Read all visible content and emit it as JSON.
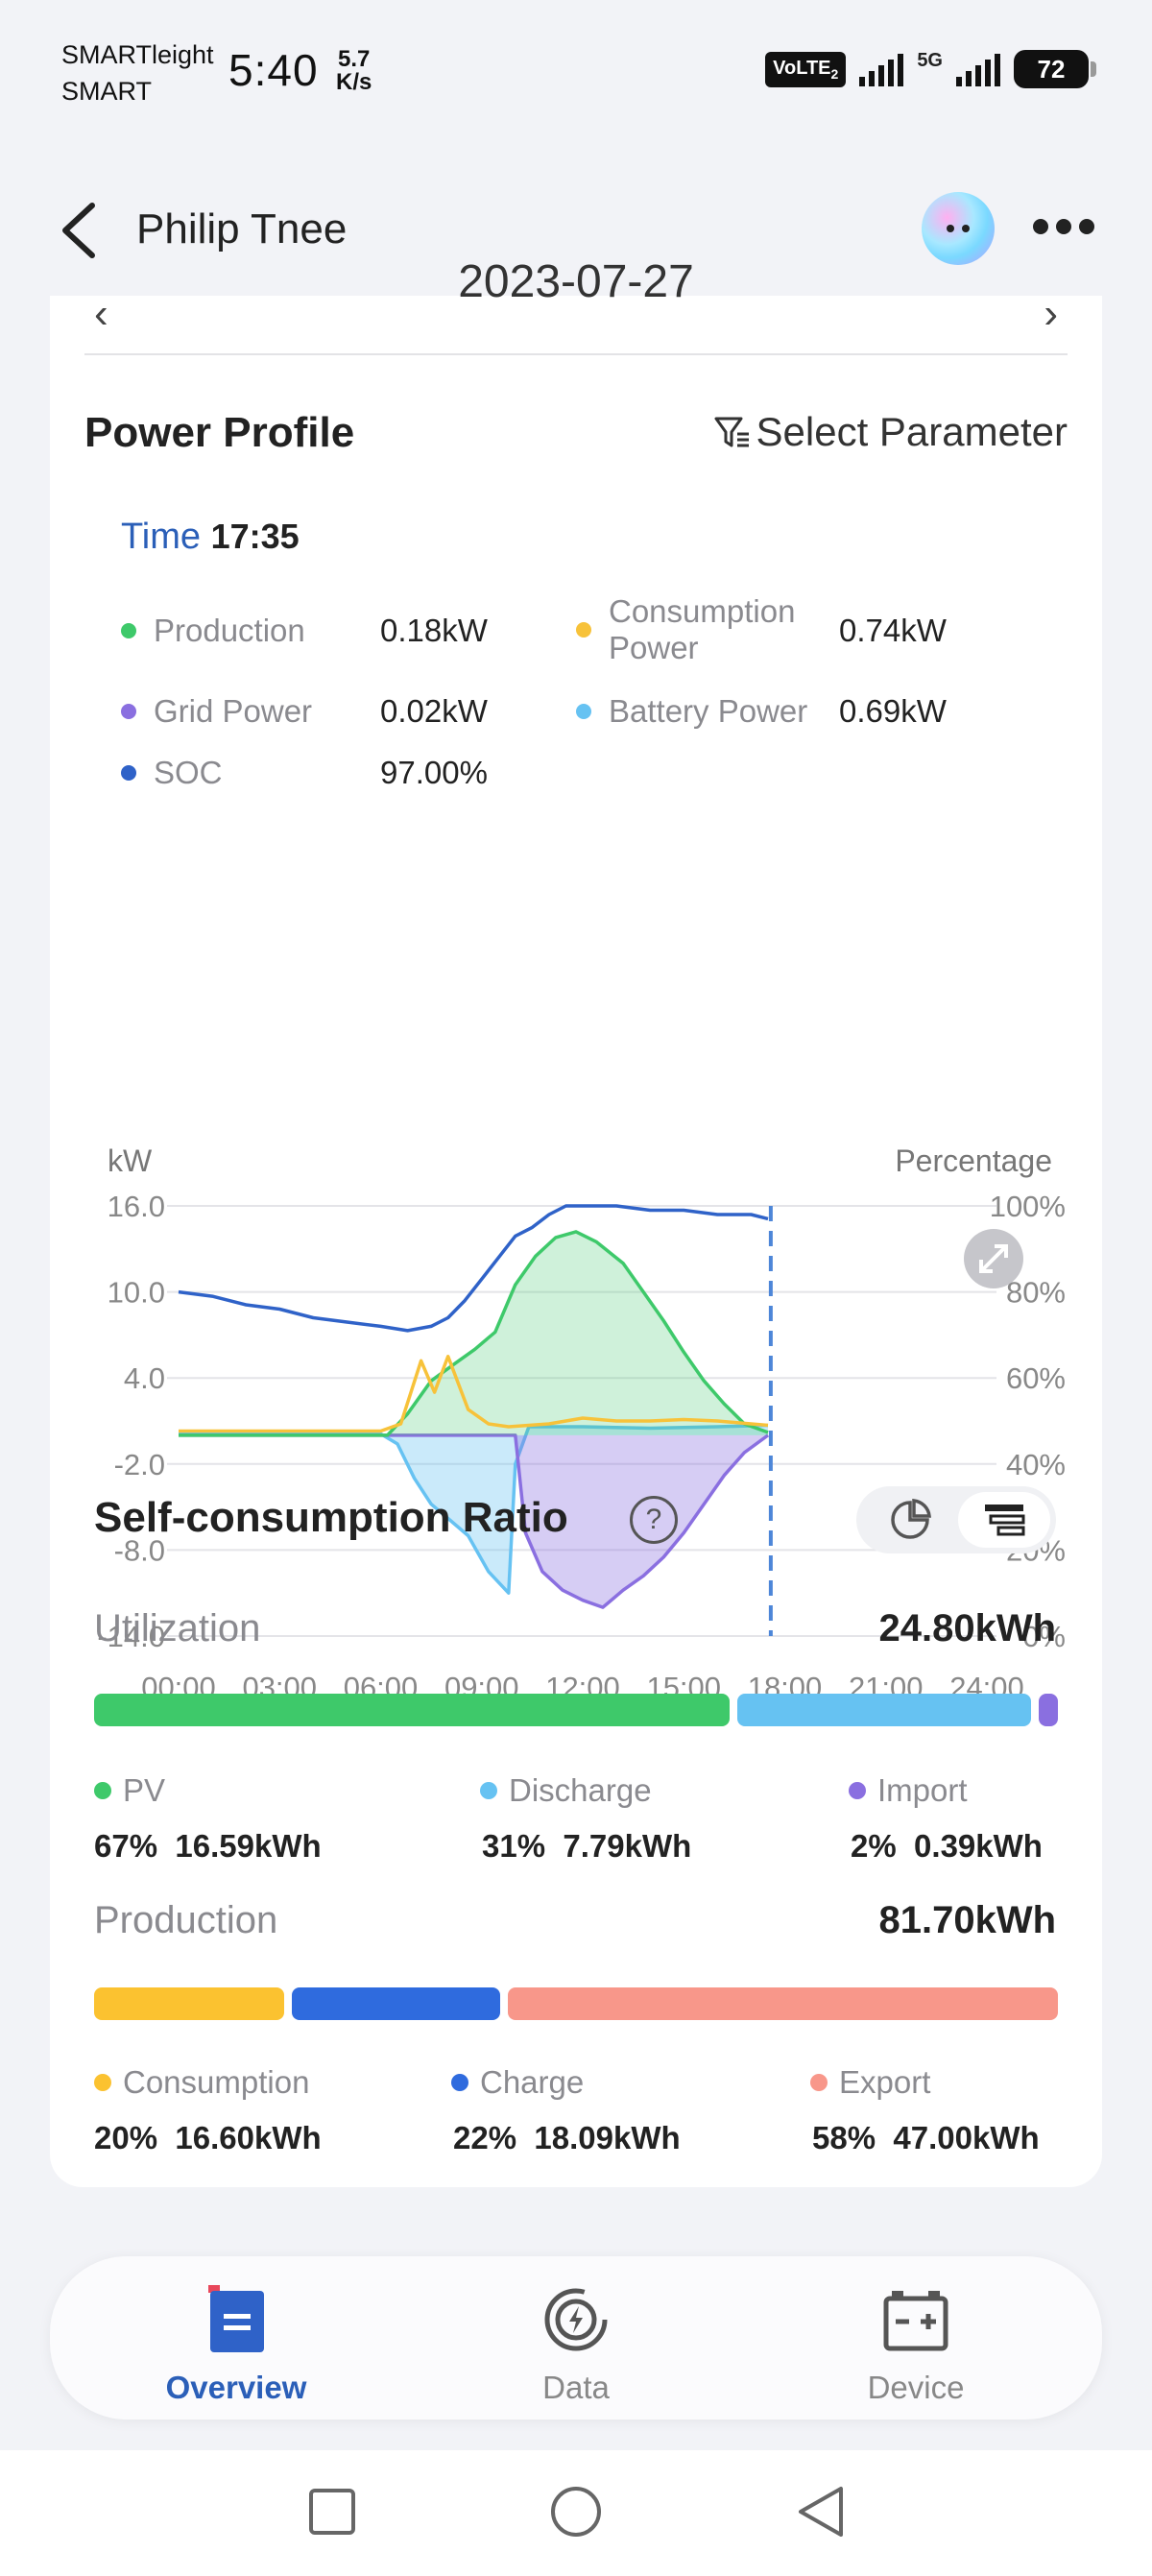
{
  "status_bar": {
    "carrier_line1": "SMARTleight",
    "carrier_line2": "SMART",
    "time": "5:40",
    "speed_value": "5.7",
    "speed_unit": "K/s",
    "volte": "VoLTE",
    "sim_index": "2",
    "network": "5G",
    "battery": "72"
  },
  "header": {
    "title": "Philip Tnee"
  },
  "date_peek": "2023-07-27",
  "power_profile": {
    "title": "Power Profile",
    "select_parameter": "Select Parameter",
    "time_label": "Time",
    "time_value": "17:35",
    "legend": [
      {
        "label": "Production",
        "value": "0.18kW",
        "color": "#3ec96a"
      },
      {
        "label": "Consumption Power",
        "value": "0.74kW",
        "color": "#f7c23a"
      },
      {
        "label": "Grid Power",
        "value": "0.02kW",
        "color": "#8a6fe0"
      },
      {
        "label": "Battery Power",
        "value": "0.69kW",
        "color": "#66c2f2"
      },
      {
        "label": "SOC",
        "value": "97.00%",
        "color": "#2f62c8"
      }
    ]
  },
  "chart_data": {
    "type": "line",
    "ylabel": "kW",
    "y2label": "Percentage",
    "yticks": [
      "16.0",
      "10.0",
      "4.0",
      "-2.0",
      "-8.0",
      "-14.0"
    ],
    "y2ticks": [
      "100%",
      "80%",
      "60%",
      "40%",
      "20%",
      "0%"
    ],
    "xticks": [
      "00:00",
      "03:00",
      "06:00",
      "09:00",
      "12:00",
      "15:00",
      "18:00",
      "21:00",
      "24:00"
    ],
    "ylim": [
      -14,
      16
    ],
    "y2lim": [
      0,
      100
    ],
    "cursor_time": "17:35",
    "series": [
      {
        "name": "Production",
        "color": "#3ec96a",
        "x": [
          0,
          6.2,
          6.8,
          7.5,
          8.2,
          8.8,
          9.4,
          10.0,
          10.6,
          11.2,
          11.8,
          12.4,
          13.2,
          13.8,
          14.4,
          15.0,
          15.6,
          16.2,
          16.8,
          17.5
        ],
        "y": [
          0,
          0,
          1.5,
          3.8,
          5.0,
          6.0,
          7.2,
          10.5,
          12.5,
          13.8,
          14.2,
          13.5,
          12.0,
          10.0,
          8.0,
          5.8,
          3.8,
          2.2,
          0.8,
          0.2
        ]
      },
      {
        "name": "Consumption Power",
        "color": "#f7c23a",
        "x": [
          0,
          3,
          6,
          6.6,
          7.2,
          7.6,
          8.0,
          8.6,
          9.2,
          9.8,
          10.4,
          11.0,
          12.0,
          13.0,
          14.0,
          15.0,
          16.0,
          17.0,
          17.5
        ],
        "y": [
          0.3,
          0.3,
          0.3,
          0.8,
          5.2,
          3.0,
          5.5,
          1.8,
          0.8,
          0.6,
          0.7,
          0.8,
          1.2,
          1.0,
          1.0,
          1.1,
          1.0,
          0.8,
          0.7
        ]
      },
      {
        "name": "Grid Power",
        "color": "#8a6fe0",
        "x": [
          0,
          10.0,
          10.3,
          10.8,
          11.4,
          12.0,
          12.6,
          13.2,
          13.8,
          14.4,
          15.0,
          15.6,
          16.2,
          16.8,
          17.5
        ],
        "y": [
          0,
          0,
          -6.8,
          -9.5,
          -10.8,
          -11.5,
          -12.0,
          -10.8,
          -9.8,
          -8.5,
          -6.8,
          -4.8,
          -2.8,
          -1.2,
          0
        ]
      },
      {
        "name": "Battery Power",
        "color": "#66c2f2",
        "x": [
          0,
          6.0,
          6.5,
          7.0,
          7.5,
          8.0,
          8.6,
          9.2,
          9.8,
          10.0,
          10.4,
          12.0,
          14.0,
          16.0,
          17.5
        ],
        "y": [
          0.1,
          0.1,
          -0.6,
          -3.0,
          -4.8,
          -5.8,
          -7.0,
          -9.5,
          -11.0,
          -2.0,
          0.6,
          0.6,
          0.5,
          0.6,
          0.7
        ]
      },
      {
        "name": "SOC",
        "color": "#2f62c8",
        "axis": "right",
        "x": [
          0,
          1,
          2,
          3,
          4,
          5,
          6,
          6.8,
          7.5,
          8.0,
          8.5,
          9.0,
          9.5,
          10.0,
          10.5,
          11.0,
          11.5,
          12.0,
          13,
          14,
          15,
          16,
          17,
          17.5
        ],
        "y": [
          80,
          79,
          77,
          76,
          74,
          73,
          72,
          71,
          72,
          74,
          78,
          83,
          88,
          93,
          95,
          98,
          100,
          100,
          100,
          99,
          99,
          98,
          98,
          97
        ]
      }
    ]
  },
  "self_consumption": {
    "title": "Self-consumption Ratio",
    "help": "?",
    "utilization": {
      "label": "Utilization",
      "total": "24.80kWh",
      "items": [
        {
          "label": "PV",
          "pct": "67%",
          "value": "16.59kWh",
          "color": "#3ec96a",
          "fraction": 0.67
        },
        {
          "label": "Discharge",
          "pct": "31%",
          "value": "7.79kWh",
          "color": "#66c2f2",
          "fraction": 0.31
        },
        {
          "label": "Import",
          "pct": "2%",
          "value": "0.39kWh",
          "color": "#8a6fe0",
          "fraction": 0.02
        }
      ]
    },
    "production": {
      "label": "Production",
      "total": "81.70kWh",
      "items": [
        {
          "label": "Consumption",
          "pct": "20%",
          "value": "16.60kWh",
          "color": "#fbc230",
          "fraction": 0.2
        },
        {
          "label": "Charge",
          "pct": "22%",
          "value": "18.09kWh",
          "color": "#2f6bde",
          "fraction": 0.22
        },
        {
          "label": "Export",
          "pct": "58%",
          "value": "47.00kWh",
          "color": "#f8978a",
          "fraction": 0.58
        }
      ]
    }
  },
  "bottom_nav": {
    "items": [
      {
        "label": "Overview",
        "icon": "overview-icon",
        "active": true
      },
      {
        "label": "Data",
        "icon": "data-icon",
        "active": false
      },
      {
        "label": "Device",
        "icon": "device-icon",
        "active": false
      }
    ]
  }
}
